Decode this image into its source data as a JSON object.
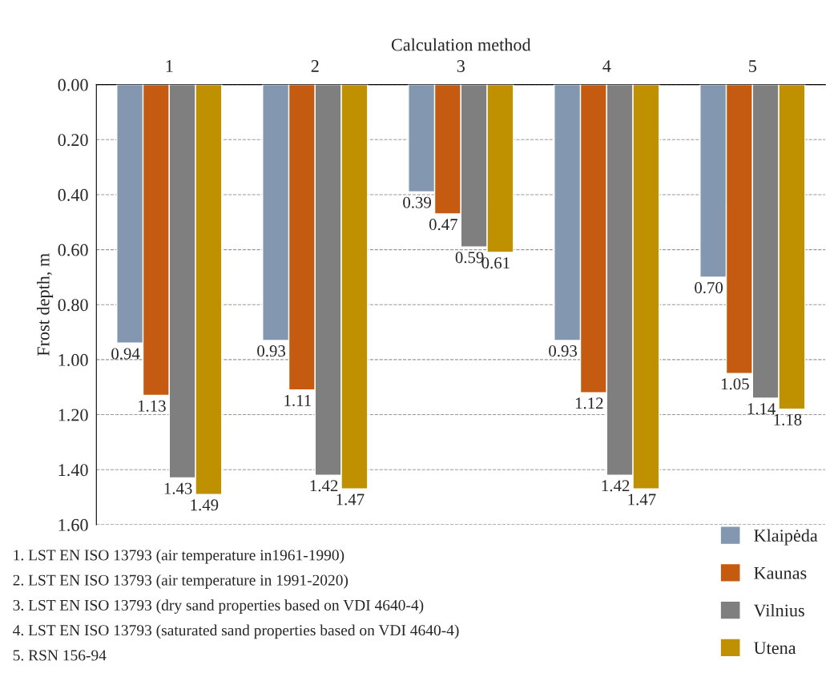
{
  "chart_data": {
    "type": "bar",
    "xlabel": "Calculation method",
    "ylabel": "Frost depth, m",
    "categories": [
      "1",
      "2",
      "3",
      "4",
      "5"
    ],
    "series": [
      {
        "name": "Klaipėda",
        "color": "#8497b0",
        "values": [
          0.94,
          0.93,
          0.39,
          0.93,
          0.7
        ],
        "value_labels": [
          "0.94",
          "0.93",
          "0.39",
          "0.93",
          "0.70"
        ]
      },
      {
        "name": "Kaunas",
        "color": "#c55a11",
        "values": [
          1.13,
          1.11,
          0.47,
          1.12,
          1.05
        ],
        "value_labels": [
          "1.13",
          "1.11",
          "0.47",
          "1.12",
          "1.05"
        ]
      },
      {
        "name": "Vilnius",
        "color": "#7f7f7f",
        "values": [
          1.43,
          1.42,
          0.59,
          1.42,
          1.14
        ],
        "value_labels": [
          "1.43",
          "1.42",
          "0.59",
          "1.42",
          "1.14"
        ]
      },
      {
        "name": "Utena",
        "color": "#bf9000",
        "values": [
          1.49,
          1.47,
          0.61,
          1.47,
          1.18
        ],
        "value_labels": [
          "1.49",
          "1.47",
          "0.61",
          "1.47",
          "1.18"
        ]
      }
    ],
    "ylim": [
      1.6,
      0
    ],
    "yticks": [
      {
        "value": 0,
        "label": "0.00"
      },
      {
        "value": 0.2,
        "label": "0.20"
      },
      {
        "value": 0.4,
        "label": "0.40"
      },
      {
        "value": 0.6,
        "label": "0.60"
      },
      {
        "value": 0.8,
        "label": "0.80"
      },
      {
        "value": 1.0,
        "label": "1.00"
      },
      {
        "value": 1.2,
        "label": "1.20"
      },
      {
        "value": 1.4,
        "label": "1.40"
      },
      {
        "value": 1.6,
        "label": "1.60"
      }
    ],
    "grid": "y",
    "legend": "bottom right",
    "annotations": [
      "1. LST EN ISO 13793 (air temperature in1961-1990)",
      "2. LST EN ISO 13793 (air temperature in 1991-2020)",
      "3. LST EN ISO 13793 (dry sand properties based on VDI 4640-4)",
      "4. LST EN ISO 13793 (saturated sand properties based on VDI 4640-4)",
      "5. RSN 156-94"
    ]
  }
}
